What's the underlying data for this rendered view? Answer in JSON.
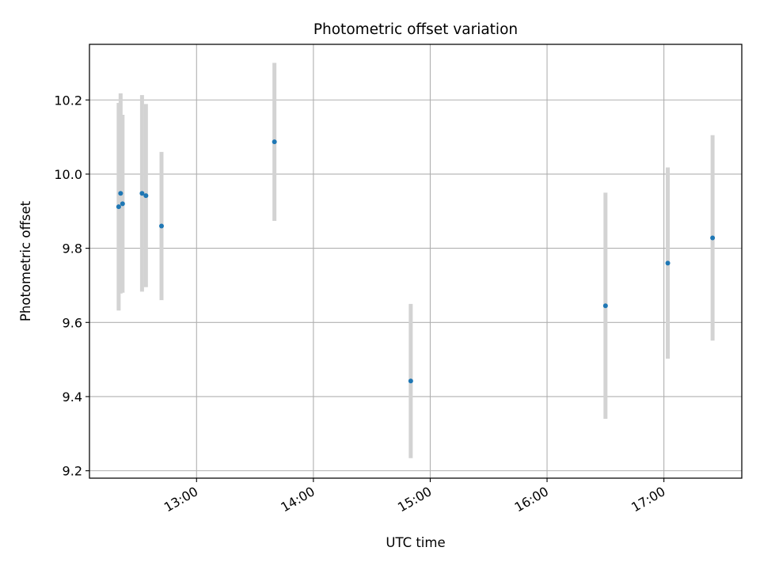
{
  "chart_data": {
    "type": "scatter",
    "title": "Photometric offset variation",
    "xlabel": "UTC time",
    "ylabel": "Photometric offset",
    "grid": true,
    "xlim": [
      "12:05",
      "17:40"
    ],
    "ylim": [
      9.18,
      10.35
    ],
    "x_ticks": [
      "13:00",
      "14:00",
      "15:00",
      "16:00",
      "17:00"
    ],
    "y_ticks": [
      "9.2",
      "9.4",
      "9.6",
      "9.8",
      "10.0",
      "10.2"
    ],
    "colors": {
      "marker": "#1f77b4",
      "errorbar": "#d3d3d3",
      "grid": "#b0b0b0"
    },
    "points": [
      {
        "x": "12:20",
        "y": 9.912,
        "yerr": 0.28
      },
      {
        "x": "12:21",
        "y": 9.948,
        "yerr": 0.27
      },
      {
        "x": "12:22",
        "y": 9.92,
        "yerr": 0.24
      },
      {
        "x": "12:32",
        "y": 9.948,
        "yerr": 0.265
      },
      {
        "x": "12:34",
        "y": 9.942,
        "yerr": 0.247
      },
      {
        "x": "12:42",
        "y": 9.86,
        "yerr": 0.2
      },
      {
        "x": "13:40",
        "y": 10.087,
        "yerr": 0.213
      },
      {
        "x": "14:50",
        "y": 9.442,
        "yerr": 0.208
      },
      {
        "x": "16:30",
        "y": 9.645,
        "yerr": 0.305
      },
      {
        "x": "17:02",
        "y": 9.76,
        "yerr": 0.258
      },
      {
        "x": "17:25",
        "y": 9.828,
        "yerr": 0.277
      }
    ]
  }
}
